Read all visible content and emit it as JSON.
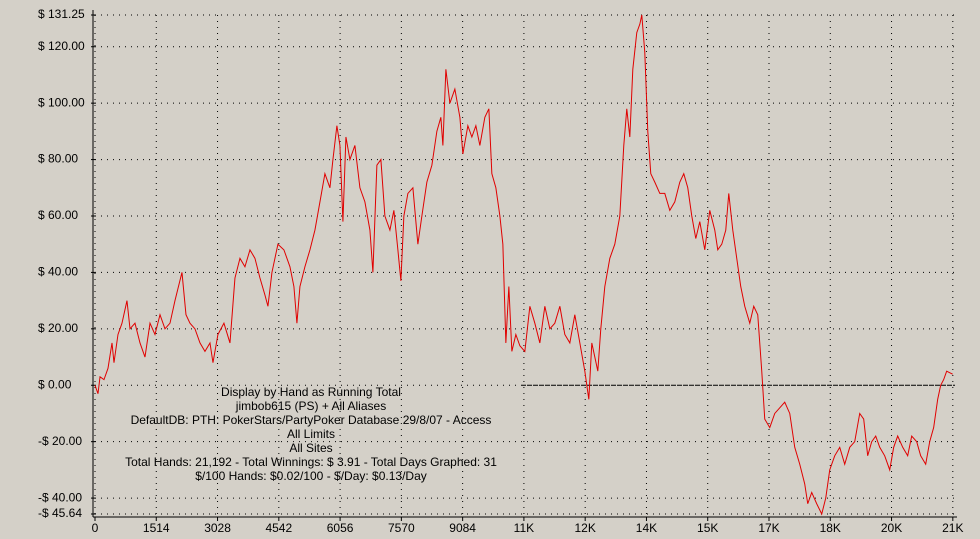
{
  "chart_data": {
    "type": "line",
    "annotations": [
      "Display by Hand as Running Total",
      "jimbob615 (PS) + All Aliases",
      "DefaultDB: PTH: PokerStars/PartyPoker Database 29/8/07 - Access",
      "All Limits",
      "All Sites",
      "Total Hands: 21,192 - Total Winnings: $ 3.91 - Total Days Graphed: 31",
      "$/100 Hands: $0.02/100 - $/Day: $0.13/Day"
    ],
    "x": [
      0,
      74,
      124,
      222,
      321,
      420,
      469,
      568,
      667,
      790,
      865,
      988,
      1112,
      1235,
      1359,
      1482,
      1606,
      1729,
      1853,
      1976,
      2149,
      2248,
      2347,
      2470,
      2594,
      2717,
      2841,
      2915,
      3038,
      3186,
      3335,
      3458,
      3582,
      3705,
      3829,
      3952,
      4076,
      4199,
      4273,
      4372,
      4520,
      4668,
      4817,
      4915,
      4989,
      5064,
      5187,
      5311,
      5434,
      5558,
      5681,
      5805,
      5879,
      5977,
      6052,
      6126,
      6200,
      6299,
      6422,
      6546,
      6669,
      6793,
      6867,
      6965,
      7064,
      7163,
      7287,
      7385,
      7484,
      7558,
      7632,
      7731,
      7855,
      7978,
      8077,
      8200,
      8324,
      8447,
      8546,
      8596,
      8670,
      8769,
      8892,
      9016,
      9090,
      9213,
      9312,
      9411,
      9510,
      9633,
      9732,
      9806,
      9905,
      10004,
      10078,
      10152,
      10226,
      10300,
      10399,
      10498,
      10621,
      10745,
      10868,
      10992,
      11115,
      11239,
      11362,
      11486,
      11609,
      11733,
      11856,
      11980,
      12103,
      12202,
      12276,
      12350,
      12424,
      12498,
      12597,
      12721,
      12844,
      12968,
      13066,
      13140,
      13215,
      13289,
      13387,
      13462,
      13511,
      13585,
      13659,
      13733,
      13832,
      13956,
      14079,
      14203,
      14326,
      14450,
      14548,
      14647,
      14746,
      14845,
      14944,
      15067,
      15191,
      15314,
      15388,
      15487,
      15586,
      15660,
      15759,
      15857,
      15956,
      16055,
      16179,
      16277,
      16376,
      16475,
      16549,
      16673,
      16796,
      16920,
      17043,
      17167,
      17290,
      17414,
      17537,
      17611,
      17710,
      17833,
      17957,
      18056,
      18155,
      18278,
      18402,
      18525,
      18649,
      18772,
      18896,
      18994,
      19093,
      19192,
      19291,
      19390,
      19513,
      19637,
      19735,
      19834,
      19958,
      20081,
      20180,
      20303,
      20402,
      20526,
      20625,
      20723,
      20822,
      20896,
      20970,
      21044,
      21192
    ],
    "series": [
      {
        "name": "Running Total",
        "color": "#e00000",
        "values": [
          0,
          -3,
          3,
          2,
          6,
          15,
          8,
          18,
          22,
          30,
          20,
          22,
          15,
          10,
          22,
          18,
          25,
          20,
          22,
          30,
          40,
          25,
          22,
          20,
          15,
          12,
          15,
          8,
          18,
          22,
          15,
          38,
          45,
          42,
          48,
          45,
          38,
          32,
          28,
          40,
          50,
          48,
          42,
          35,
          22,
          35,
          42,
          48,
          55,
          65,
          75,
          70,
          80,
          92,
          85,
          58,
          88,
          80,
          85,
          70,
          65,
          55,
          40,
          78,
          80,
          60,
          55,
          62,
          48,
          37,
          60,
          68,
          70,
          50,
          60,
          72,
          78,
          90,
          95,
          85,
          112,
          100,
          105,
          95,
          82,
          92,
          88,
          92,
          85,
          95,
          98,
          75,
          70,
          60,
          50,
          15,
          35,
          12,
          18,
          14,
          12,
          28,
          22,
          15,
          28,
          20,
          22,
          28,
          18,
          15,
          25,
          15,
          5,
          -5,
          15,
          10,
          5,
          20,
          35,
          45,
          50,
          60,
          85,
          98,
          88,
          112,
          125,
          128,
          131.25,
          118,
          90,
          75,
          72,
          68,
          68,
          62,
          65,
          72,
          75,
          70,
          60,
          52,
          58,
          48,
          62,
          55,
          48,
          50,
          55,
          68,
          55,
          45,
          35,
          28,
          22,
          28,
          25,
          5,
          -12,
          -15,
          -10,
          -8,
          -6,
          -10,
          -22,
          -28,
          -35,
          -42,
          -38,
          -42,
          -45.64,
          -40,
          -30,
          -25,
          -22,
          -28,
          -22,
          -20,
          -10,
          -12,
          -25,
          -20,
          -18,
          -22,
          -25,
          -30,
          -22,
          -18,
          -22,
          -25,
          -18,
          -20,
          -25,
          -28,
          -20,
          -15,
          -5,
          0,
          2,
          5,
          3.91
        ]
      }
    ],
    "xlim": [
      0,
      21250
    ],
    "xticks": [
      0,
      1514,
      3028,
      4542,
      6056,
      7570,
      9084,
      {
        "value": 10598,
        "label": "11K"
      },
      {
        "value": 12112,
        "label": "12K"
      },
      {
        "value": 13626,
        "label": "14K"
      },
      {
        "value": 15140,
        "label": "15K"
      },
      {
        "value": 16654,
        "label": "17K"
      },
      {
        "value": 18168,
        "label": "18K"
      },
      {
        "value": 19682,
        "label": "20K"
      },
      {
        "value": 21196,
        "label": "21K"
      }
    ],
    "ylim": [
      -45.64,
      131.25
    ],
    "yticks": [
      {
        "value": 131.25,
        "label": "$ 131.25"
      },
      {
        "value": 120,
        "label": "$ 120.00"
      },
      {
        "value": 100,
        "label": "$ 100.00"
      },
      {
        "value": 80,
        "label": "$ 80.00"
      },
      {
        "value": 60,
        "label": "$ 60.00"
      },
      {
        "value": 40,
        "label": "$ 40.00"
      },
      {
        "value": 20,
        "label": "$ 20.00"
      },
      {
        "value": 0,
        "label": "$ 0.00"
      },
      {
        "value": -20,
        "label": "-$ 20.00"
      },
      {
        "value": -40,
        "label": "-$ 40.00"
      },
      {
        "value": -45.64,
        "label": "-$ 45.64"
      }
    ],
    "grid": true
  }
}
